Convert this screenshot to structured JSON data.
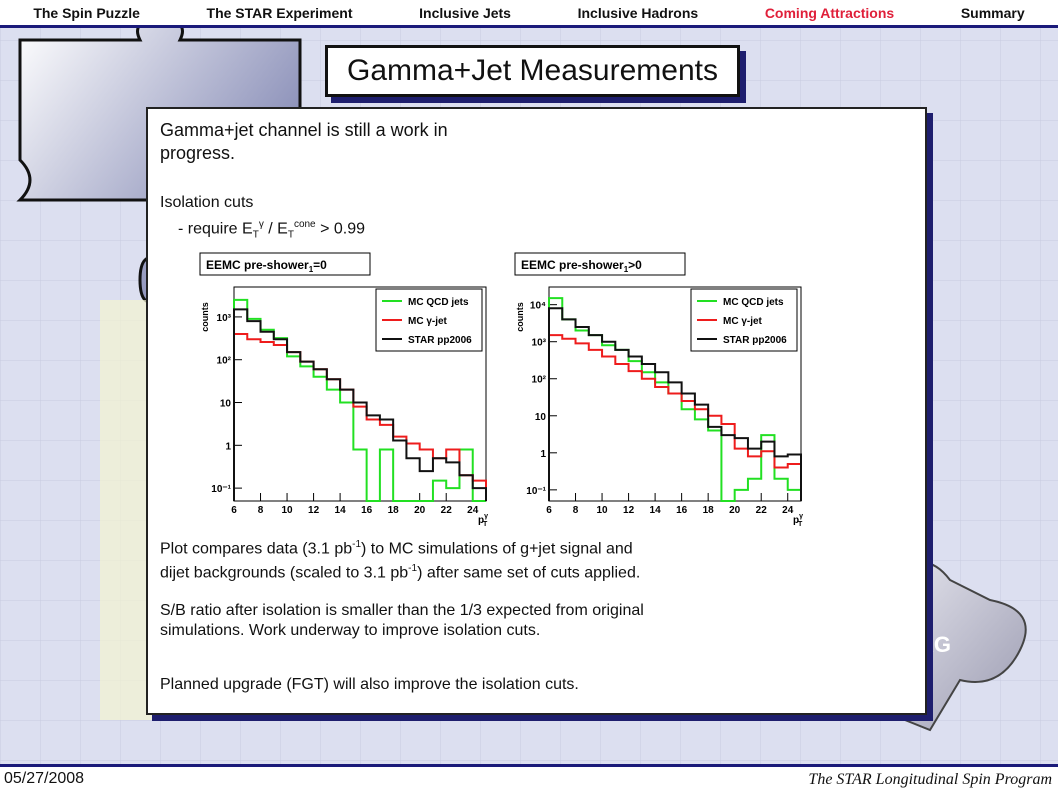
{
  "nav": {
    "items": [
      {
        "label": "The Spin Puzzle"
      },
      {
        "label": "The STAR Experiment"
      },
      {
        "label": "Inclusive Jets"
      },
      {
        "label": "Inclusive Hadrons"
      },
      {
        "label": "Coming Attractions"
      },
      {
        "label": "Summary"
      }
    ],
    "active_color": "#e0203a"
  },
  "title": "Gamma+Jet Measurements",
  "content": {
    "intro_line1": "Gamma+jet channel is still a work in",
    "intro_line2": "progress.",
    "iso_heading": "Isolation cuts",
    "iso_cut_prefix": "- require E",
    "iso_cut_t1": "T",
    "iso_cut_gamma": "γ",
    "iso_cut_div": " / E",
    "iso_cut_t2": "T",
    "iso_cut_cone": "cone",
    "iso_cut_value": " > 0.99",
    "p1_line1": "Plot compares data (3.1 pb",
    "p1_sup1": "-1",
    "p1_line1b": ") to MC simulations of g+jet signal and",
    "p1_line2a": "dijet backgrounds (scaled to 3.1 pb",
    "p1_sup2": "-1",
    "p1_line2b": ") after same set of cuts applied.",
    "p2_line1": "S/B ratio after isolation is smaller than the 1/3 expected from original",
    "p2_line2": "simulations.  Work underway to improve isolation cuts.",
    "p3": "Planned upgrade (FGT) will also improve the isolation cuts."
  },
  "background_badge": "AG",
  "footer": {
    "date": "05/27/2008",
    "title": "The STAR Longitudinal Spin Program"
  },
  "chart_data": [
    {
      "type": "line",
      "title": "EEMC pre-shower",
      "title_sub": "1",
      "title_cond": "=0",
      "ylabel": "counts",
      "xlabel": "p",
      "xlabel_sup": "γ",
      "xlabel_sub": "T",
      "ylog": true,
      "xlim": [
        6,
        25
      ],
      "ylim": [
        0.05,
        5000
      ],
      "xticks": [
        "6",
        "8",
        "10",
        "12",
        "14",
        "16",
        "18",
        "20",
        "22",
        "24"
      ],
      "yticks": [
        "10⁻¹",
        "1",
        "10",
        "10²",
        "10³"
      ],
      "x_edges": [
        6,
        7,
        8,
        9,
        10,
        11,
        12,
        13,
        14,
        15,
        16,
        17,
        18,
        19,
        20,
        21,
        22,
        23,
        24,
        25
      ],
      "series": [
        {
          "name": "MC QCD jets",
          "color": "#22e022",
          "values": [
            2500,
            900,
            500,
            320,
            120,
            70,
            40,
            20,
            10,
            0.8,
            0.05,
            0.8,
            0.05,
            0.05,
            0.05,
            0.15,
            0.1,
            0.8,
            0.05
          ]
        },
        {
          "name": "MC γ-jet",
          "color": "#ee1c1c",
          "values": [
            400,
            300,
            260,
            220,
            150,
            90,
            60,
            35,
            20,
            8,
            4,
            3,
            1.6,
            1.1,
            0.8,
            0.5,
            0.8,
            0.2,
            0.15
          ]
        },
        {
          "name": "STAR pp2006",
          "color": "#111111",
          "values": [
            1500,
            800,
            450,
            300,
            150,
            90,
            60,
            35,
            20,
            10,
            5,
            4,
            1.3,
            0.5,
            0.25,
            0.5,
            0.4,
            0.2,
            0.1
          ]
        }
      ]
    },
    {
      "type": "line",
      "title": "EEMC pre-shower",
      "title_sub": "1",
      "title_cond": ">0",
      "ylabel": "counts",
      "xlabel": "p",
      "xlabel_sup": "γ",
      "xlabel_sub": "T",
      "ylog": true,
      "xlim": [
        6,
        25
      ],
      "ylim": [
        0.05,
        30000
      ],
      "xticks": [
        "6",
        "8",
        "10",
        "12",
        "14",
        "16",
        "18",
        "20",
        "22",
        "24"
      ],
      "yticks": [
        "10⁻¹",
        "1",
        "10",
        "10²",
        "10³",
        "10⁴"
      ],
      "x_edges": [
        6,
        7,
        8,
        9,
        10,
        11,
        12,
        13,
        14,
        15,
        16,
        17,
        18,
        19,
        20,
        21,
        22,
        23,
        24,
        25
      ],
      "series": [
        {
          "name": "MC QCD jets",
          "color": "#22e022",
          "values": [
            15000,
            4000,
            2000,
            1500,
            800,
            600,
            300,
            150,
            80,
            40,
            15,
            8,
            4,
            0.05,
            0.1,
            0.2,
            3,
            0.2,
            0.1
          ]
        },
        {
          "name": "MC γ-jet",
          "color": "#ee1c1c",
          "values": [
            1500,
            1200,
            900,
            600,
            400,
            250,
            160,
            100,
            60,
            40,
            25,
            15,
            10,
            6,
            1.3,
            0.8,
            1.1,
            0.4,
            0.5
          ]
        },
        {
          "name": "STAR pp2006",
          "color": "#111111",
          "values": [
            8000,
            4000,
            2500,
            1500,
            1000,
            600,
            400,
            250,
            150,
            80,
            40,
            20,
            5,
            3,
            2.5,
            1.3,
            2,
            0.8,
            0.9
          ]
        }
      ]
    }
  ]
}
